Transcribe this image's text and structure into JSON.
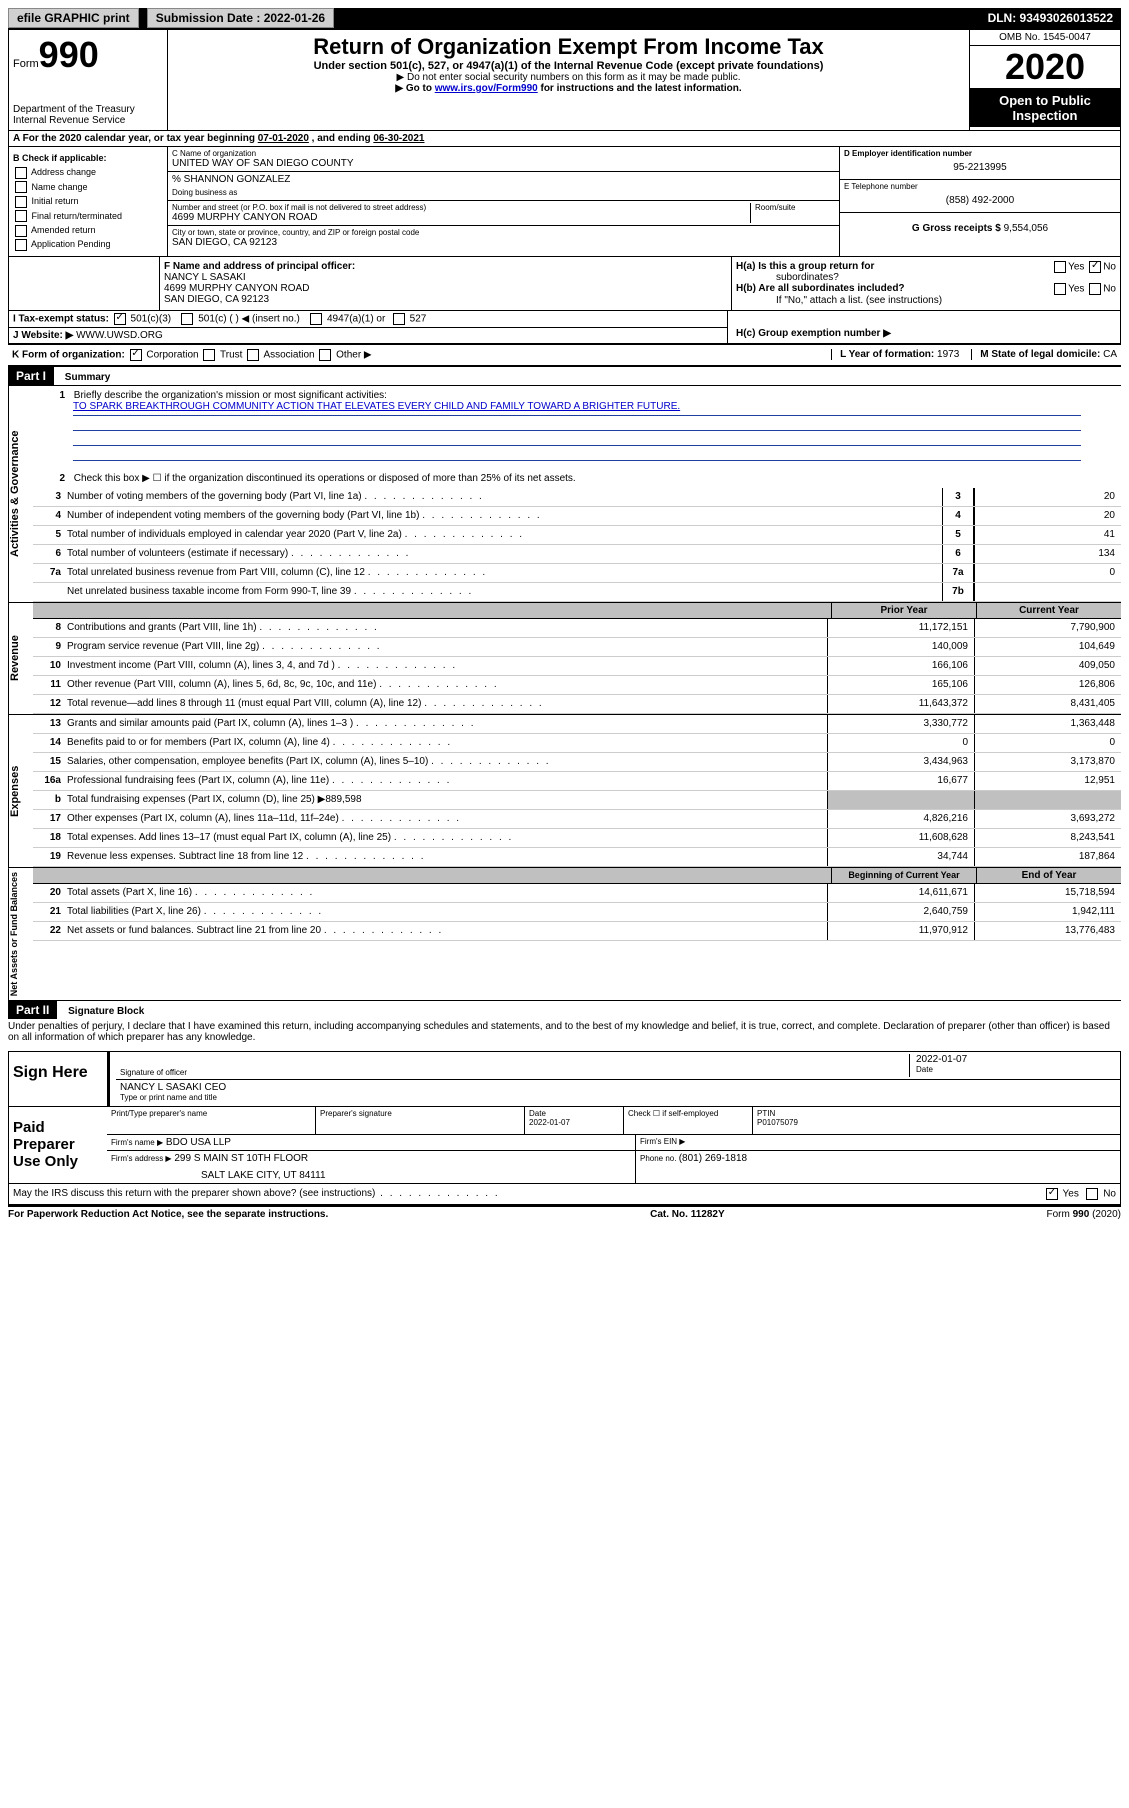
{
  "topbar": {
    "efile": "efile GRAPHIC print",
    "submission_label": "Submission Date : 2022-01-26",
    "dln": "DLN: 93493026013522"
  },
  "header": {
    "form_word": "Form",
    "form_num": "990",
    "dept": "Department of the Treasury",
    "irs": "Internal Revenue Service",
    "title": "Return of Organization Exempt From Income Tax",
    "sub": "Under section 501(c), 527, or 4947(a)(1) of the Internal Revenue Code (except private foundations)",
    "note1": "▶ Do not enter social security numbers on this form as it may be made public.",
    "note2_pre": "▶ Go to ",
    "note2_link": "www.irs.gov/Form990",
    "note2_post": " for instructions and the latest information.",
    "omb": "OMB No. 1545-0047",
    "year": "2020",
    "otp1": "Open to Public",
    "otp2": "Inspection"
  },
  "period": {
    "label_a": "A For the 2020 calendar year, or tax year beginning ",
    "begin": "07-01-2020",
    "mid": " , and ending ",
    "end": "06-30-2021"
  },
  "box_b": {
    "label": "B Check if applicable:",
    "opts": [
      "Address change",
      "Name change",
      "Initial return",
      "Final return/terminated",
      "Amended return",
      "Application Pending"
    ]
  },
  "box_c": {
    "label": "C Name of organization",
    "name": "UNITED WAY OF SAN DIEGO COUNTY",
    "pct": "% SHANNON GONZALEZ",
    "dba": "Doing business as",
    "street_label": "Number and street (or P.O. box if mail is not delivered to street address)",
    "room": "Room/suite",
    "street": "4699 MURPHY CANYON ROAD",
    "city_label": "City or town, state or province, country, and ZIP or foreign postal code",
    "city": "SAN DIEGO, CA  92123"
  },
  "box_d": {
    "label": "D Employer identification number",
    "val": "95-2213995"
  },
  "box_e": {
    "label": "E Telephone number",
    "val": "(858) 492-2000"
  },
  "box_g": {
    "label": "G Gross receipts $ ",
    "val": "9,554,056"
  },
  "box_f": {
    "label": "F Name and address of principal officer:",
    "name": "NANCY L SASAKI",
    "street": "4699 MURPHY CANYON ROAD",
    "city": "SAN DIEGO, CA  92123"
  },
  "box_h": {
    "ha": "H(a)   Is this a group return for",
    "ha2": "subordinates?",
    "hb": "H(b)   Are all subordinates included?",
    "hb_note": "If \"No,\" attach a list. (see instructions)",
    "hc": "H(c)   Group exemption number ▶",
    "yes": "Yes",
    "no": "No"
  },
  "box_i": {
    "label": "I   Tax-exempt status:",
    "o1": "501(c)(3)",
    "o2": "501(c) (   ) ◀ (insert no.)",
    "o3": "4947(a)(1) or",
    "o4": "527"
  },
  "box_j": {
    "label": "J   Website: ▶",
    "val": "WWW.UWSD.ORG"
  },
  "box_k": {
    "label": "K Form of organization:",
    "o1": "Corporation",
    "o2": "Trust",
    "o3": "Association",
    "o4": "Other ▶"
  },
  "box_l": {
    "label": "L Year of formation: ",
    "val": "1973"
  },
  "box_m": {
    "label": "M State of legal domicile: ",
    "val": "CA"
  },
  "part1": {
    "title": "Part I",
    "subtitle": "Summary",
    "q1": "Briefly describe the organization's mission or most significant activities:",
    "mission": "TO SPARK BREAKTHROUGH COMMUNITY ACTION THAT ELEVATES EVERY CHILD AND FAMILY TOWARD A BRIGHTER FUTURE.",
    "q2": "Check this box ▶ ☐  if the organization discontinued its operations or disposed of more than 25% of its net assets.",
    "rows_gov": [
      {
        "n": "3",
        "d": "Number of voting members of the governing body (Part VI, line 1a)",
        "b": "3",
        "v": "20"
      },
      {
        "n": "4",
        "d": "Number of independent voting members of the governing body (Part VI, line 1b)",
        "b": "4",
        "v": "20"
      },
      {
        "n": "5",
        "d": "Total number of individuals employed in calendar year 2020 (Part V, line 2a)",
        "b": "5",
        "v": "41"
      },
      {
        "n": "6",
        "d": "Total number of volunteers (estimate if necessary)",
        "b": "6",
        "v": "134"
      },
      {
        "n": "7a",
        "d": "Total unrelated business revenue from Part VIII, column (C), line 12",
        "b": "7a",
        "v": "0"
      },
      {
        "n": "",
        "d": "Net unrelated business taxable income from Form 990-T, line 39",
        "b": "7b",
        "v": ""
      }
    ],
    "col_prior": "Prior Year",
    "col_current": "Current Year",
    "rows_rev": [
      {
        "n": "8",
        "d": "Contributions and grants (Part VIII, line 1h)",
        "p": "11,172,151",
        "c": "7,790,900"
      },
      {
        "n": "9",
        "d": "Program service revenue (Part VIII, line 2g)",
        "p": "140,009",
        "c": "104,649"
      },
      {
        "n": "10",
        "d": "Investment income (Part VIII, column (A), lines 3, 4, and 7d )",
        "p": "166,106",
        "c": "409,050"
      },
      {
        "n": "11",
        "d": "Other revenue (Part VIII, column (A), lines 5, 6d, 8c, 9c, 10c, and 11e)",
        "p": "165,106",
        "c": "126,806"
      },
      {
        "n": "12",
        "d": "Total revenue—add lines 8 through 11 (must equal Part VIII, column (A), line 12)",
        "p": "11,643,372",
        "c": "8,431,405"
      }
    ],
    "rows_exp": [
      {
        "n": "13",
        "d": "Grants and similar amounts paid (Part IX, column (A), lines 1–3 )",
        "p": "3,330,772",
        "c": "1,363,448"
      },
      {
        "n": "14",
        "d": "Benefits paid to or for members (Part IX, column (A), line 4)",
        "p": "0",
        "c": "0"
      },
      {
        "n": "15",
        "d": "Salaries, other compensation, employee benefits (Part IX, column (A), lines 5–10)",
        "p": "3,434,963",
        "c": "3,173,870"
      },
      {
        "n": "16a",
        "d": "Professional fundraising fees (Part IX, column (A), line 11e)",
        "p": "16,677",
        "c": "12,951"
      },
      {
        "n": "b",
        "d": "Total fundraising expenses (Part IX, column (D), line 25) ▶889,598",
        "p": "",
        "c": "",
        "grey": true
      },
      {
        "n": "17",
        "d": "Other expenses (Part IX, column (A), lines 11a–11d, 11f–24e)",
        "p": "4,826,216",
        "c": "3,693,272"
      },
      {
        "n": "18",
        "d": "Total expenses. Add lines 13–17 (must equal Part IX, column (A), line 25)",
        "p": "11,608,628",
        "c": "8,243,541"
      },
      {
        "n": "19",
        "d": "Revenue less expenses. Subtract line 18 from line 12",
        "p": "34,744",
        "c": "187,864"
      }
    ],
    "col_begin": "Beginning of Current Year",
    "col_end": "End of Year",
    "rows_net": [
      {
        "n": "20",
        "d": "Total assets (Part X, line 16)",
        "p": "14,611,671",
        "c": "15,718,594"
      },
      {
        "n": "21",
        "d": "Total liabilities (Part X, line 26)",
        "p": "2,640,759",
        "c": "1,942,111"
      },
      {
        "n": "22",
        "d": "Net assets or fund balances. Subtract line 21 from line 20",
        "p": "11,970,912",
        "c": "13,776,483"
      }
    ],
    "vert_gov": "Activities & Governance",
    "vert_rev": "Revenue",
    "vert_exp": "Expenses",
    "vert_net": "Net Assets or Fund Balances"
  },
  "part2": {
    "title": "Part II",
    "subtitle": "Signature Block",
    "decl": "Under penalties of perjury, I declare that I have examined this return, including accompanying schedules and statements, and to the best of my knowledge and belief, it is true, correct, and complete. Declaration of preparer (other than officer) is based on all information of which preparer has any knowledge.",
    "sign_here": "Sign Here",
    "sig_officer": "Signature of officer",
    "sig_date": "2022-01-07",
    "date_label": "Date",
    "officer_name": "NANCY L SASAKI  CEO",
    "officer_type": "Type or print name and title",
    "paid": "Paid Preparer Use Only",
    "prep_name_label": "Print/Type preparer's name",
    "prep_sig_label": "Preparer's signature",
    "prep_date_label": "Date",
    "prep_date": "2022-01-07",
    "check_self": "Check ☐  if self-employed",
    "ptin_label": "PTIN",
    "ptin": "P01075079",
    "firm_name_label": "Firm's name      ▶",
    "firm_name": "BDO USA LLP",
    "firm_ein_label": "Firm's EIN ▶",
    "firm_addr_label": "Firm's address ▶",
    "firm_addr1": "299 S MAIN ST 10TH FLOOR",
    "firm_addr2": "SALT LAKE CITY, UT  84111",
    "phone_label": "Phone no. ",
    "phone": "(801) 269-1818",
    "may_discuss": "May the IRS discuss this return with the preparer shown above? (see instructions)",
    "yes": "Yes",
    "no": "No"
  },
  "footer": {
    "pra": "For Paperwork Reduction Act Notice, see the separate instructions.",
    "cat": "Cat. No. 11282Y",
    "form": "Form 990 (2020)"
  }
}
